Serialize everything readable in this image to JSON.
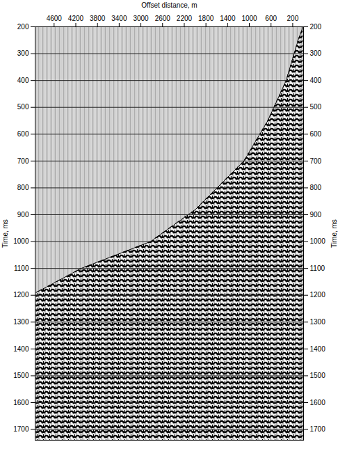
{
  "chart_data": {
    "type": "seismic_gather",
    "x_label": "Offset distance, m",
    "y_label": "Time, ms",
    "y2_label": "Time, ms",
    "xlim": [
      4950,
      0
    ],
    "xticks": [
      4600,
      4200,
      3800,
      3400,
      3000,
      2600,
      2200,
      1800,
      1400,
      1000,
      600,
      200
    ],
    "ylim": [
      200,
      1740
    ],
    "yticks": [
      200,
      300,
      400,
      500,
      600,
      700,
      800,
      900,
      1000,
      1100,
      1200,
      1300,
      1400,
      1500,
      1600,
      1700
    ],
    "y2lim": [
      200,
      1740
    ],
    "y2ticks": [
      200,
      300,
      400,
      500,
      600,
      700,
      800,
      900,
      1000,
      1100,
      1200,
      1300,
      1400,
      1500,
      1600,
      1700
    ],
    "first_break": {
      "x": [
        4930,
        4100,
        2820,
        1990,
        1100,
        660,
        320,
        100,
        10
      ],
      "y": [
        1190,
        1100,
        1000,
        880,
        700,
        550,
        400,
        250,
        200
      ]
    },
    "grid": true,
    "color": "#000000"
  }
}
